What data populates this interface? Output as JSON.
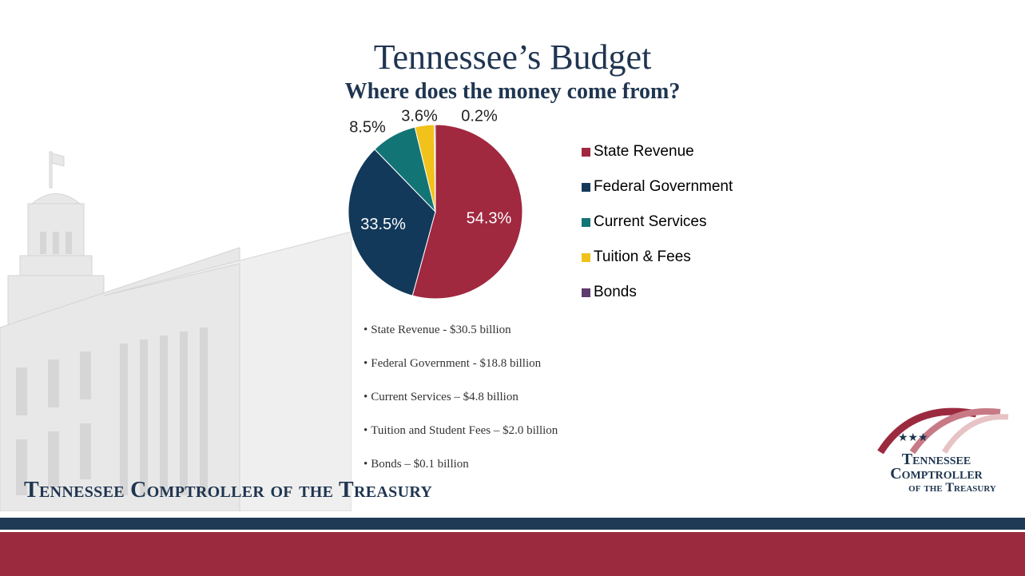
{
  "slide": {
    "title": "Tennessee’s Budget",
    "subtitle": "Where does the money come from?",
    "footer_org": "Tennessee Comptroller of the Treasury",
    "logo": {
      "line1": "Tennessee",
      "line2": "Comptroller",
      "line3": "of the Treasury"
    }
  },
  "chart_data": {
    "type": "pie",
    "series": [
      {
        "name": "State Revenue",
        "value": 54.3,
        "label": "54.3%",
        "color": "#a0283f"
      },
      {
        "name": "Federal Government",
        "value": 33.5,
        "label": "33.5%",
        "color": "#13395a"
      },
      {
        "name": "Current Services",
        "value": 8.5,
        "label": "8.5%",
        "color": "#137476"
      },
      {
        "name": "Tuition & Fees",
        "value": 3.6,
        "label": "3.6%",
        "color": "#f1c21b"
      },
      {
        "name": "Bonds",
        "value": 0.2,
        "label": "0.2%",
        "color": "#5e3b6f"
      }
    ],
    "legend": [
      "State Revenue",
      "Federal Government",
      "Current Services",
      "Tuition & Fees",
      "Bonds"
    ],
    "legend_position": "right"
  },
  "bullets": [
    "State Revenue - $30.5 billion",
    "Federal Government - $18.8 billion",
    "Current Services – $4.8 billion",
    "Tuition and Student Fees – $2.0 billion",
    "Bonds – $0.1 billion"
  ],
  "colors": {
    "navy": "#1f3a55",
    "maroon": "#9c2a3f",
    "title": "#1f3550"
  }
}
